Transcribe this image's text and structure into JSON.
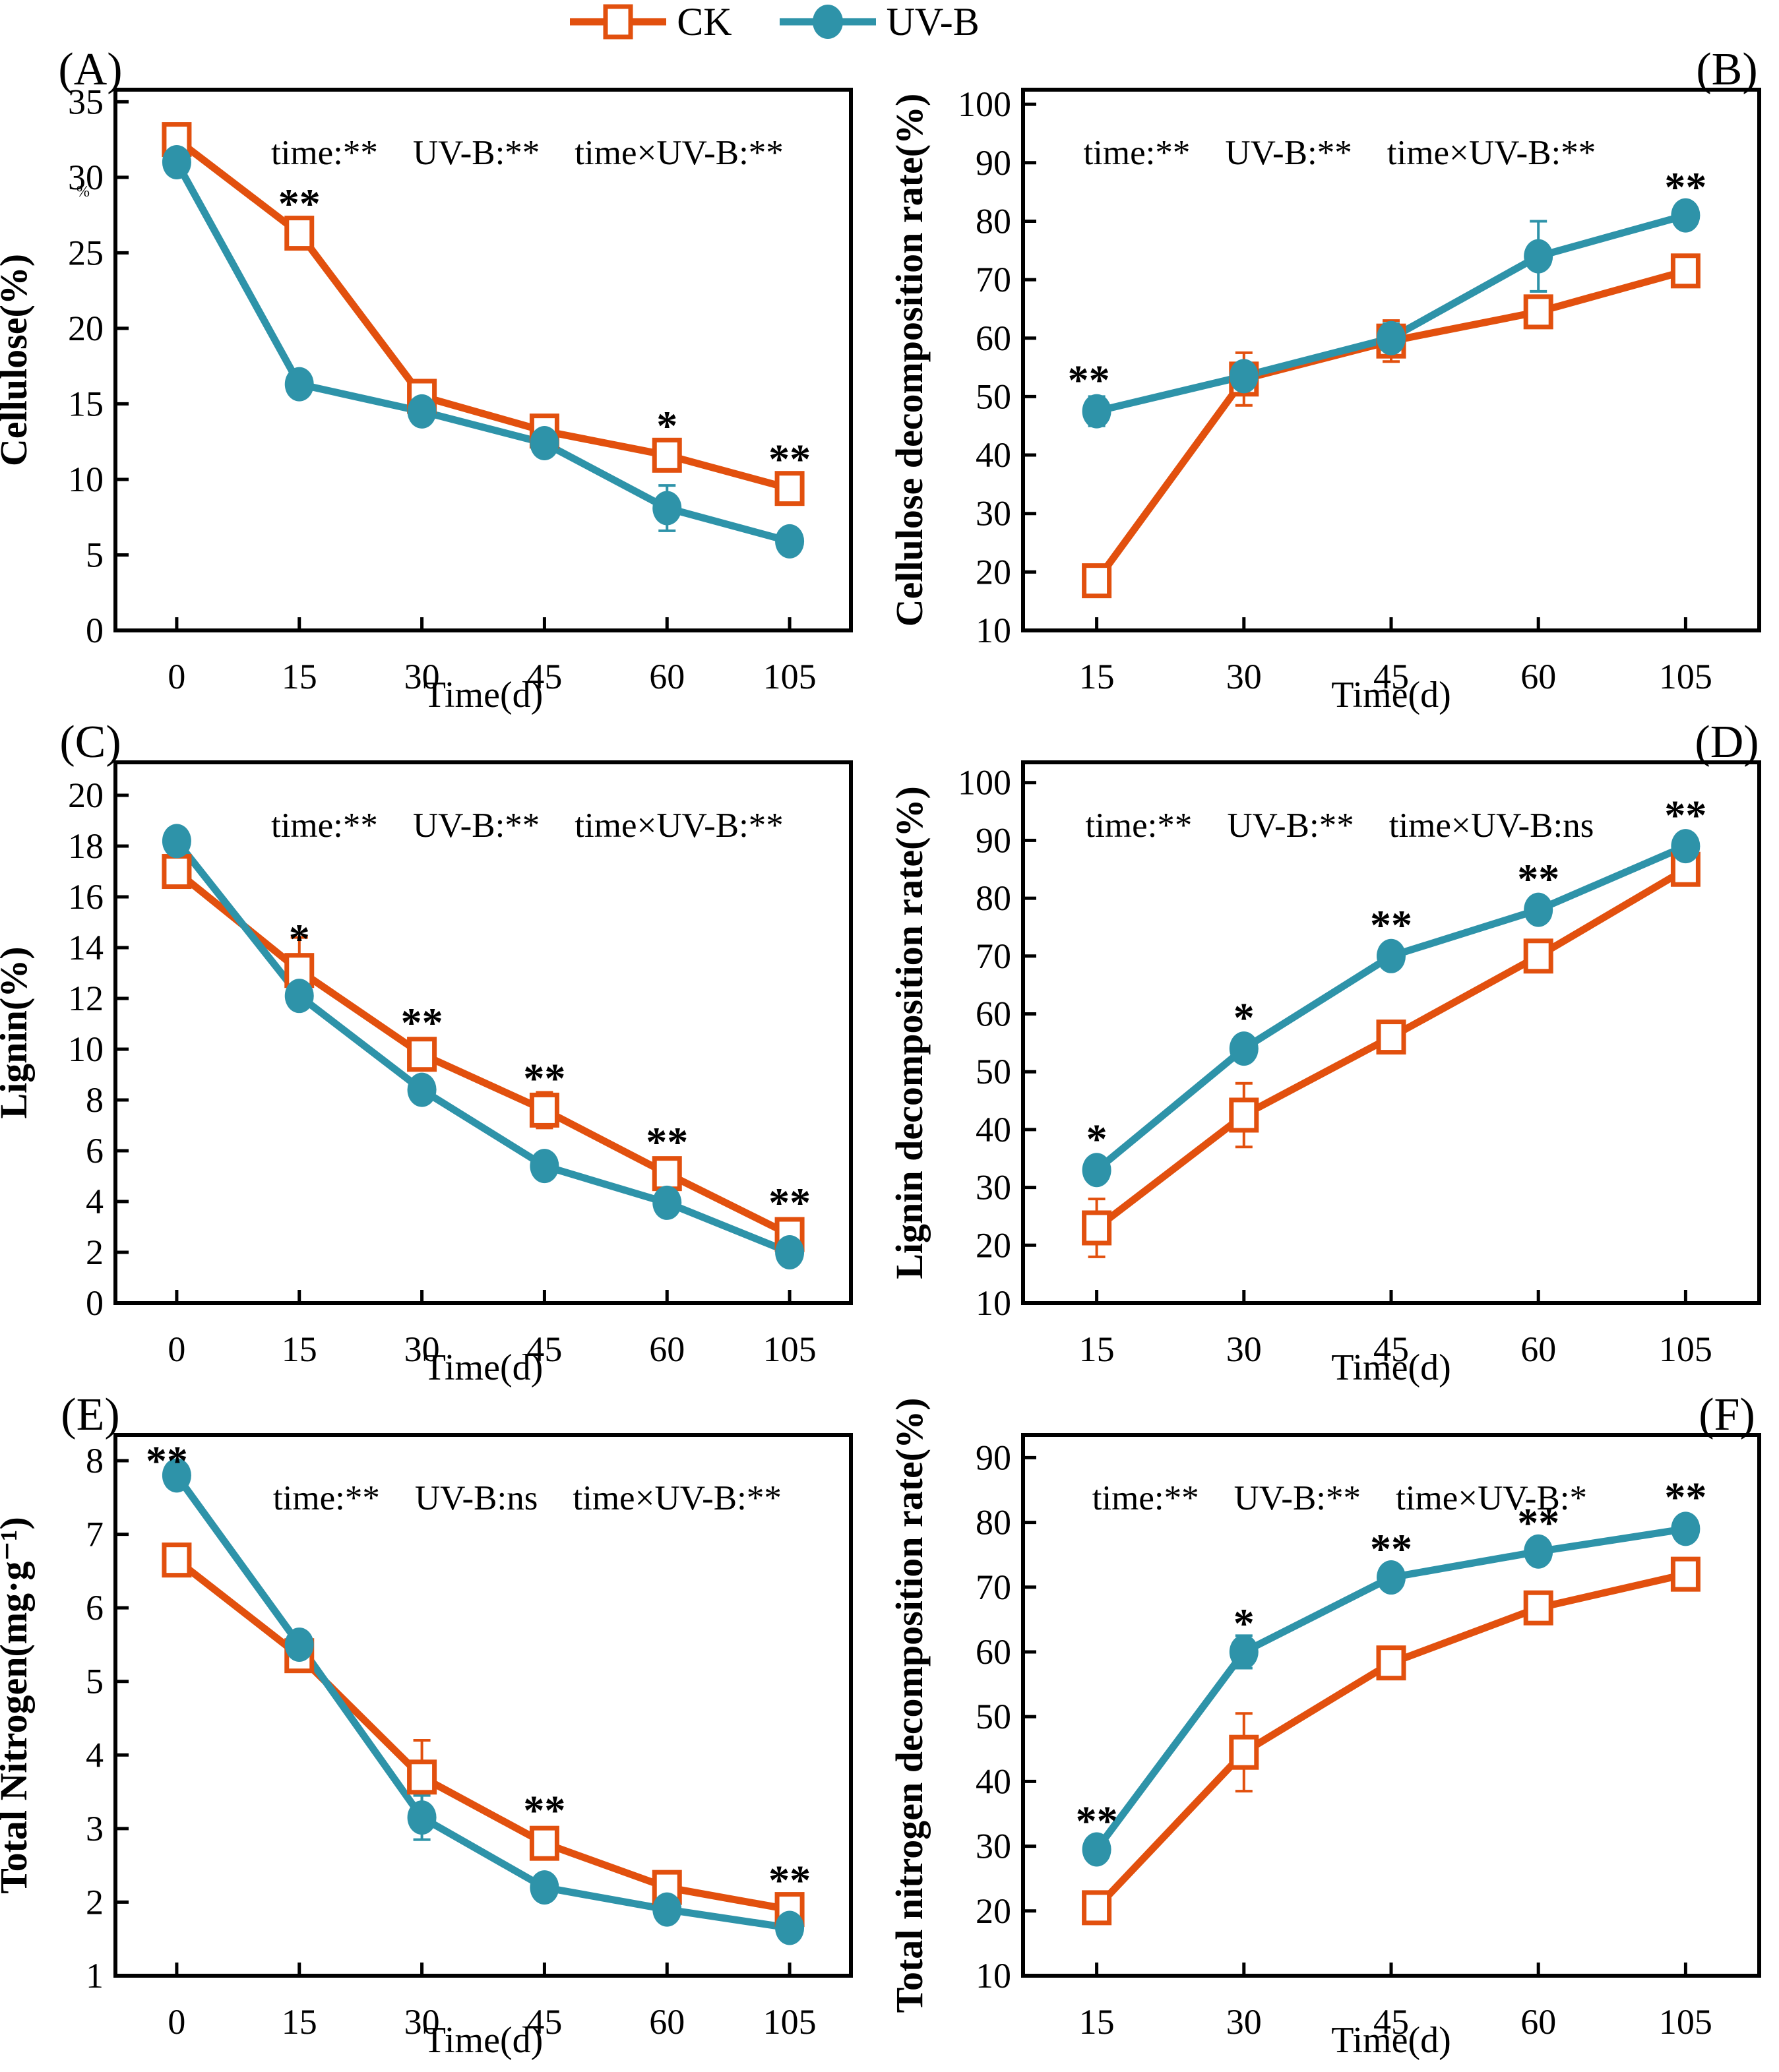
{
  "figure": {
    "stray_glyph": "%",
    "colors": {
      "ck": "#E2500E",
      "uvb": "#2E93A9",
      "axis": "#000000"
    },
    "legend": {
      "items": [
        {
          "label": "CK",
          "series": "CK",
          "marker": "open-square"
        },
        {
          "label": "UV-B",
          "series": "UV-B",
          "marker": "filled-circle"
        }
      ]
    }
  },
  "chart_data": [
    {
      "type": "line",
      "letter": "(A)",
      "col": "left",
      "row": 0,
      "title": "",
      "ylabel": "Cellulose(%)",
      "xlabel": "Time(d)",
      "stats": "time:**  UV-B:**  time×UV-B:**",
      "categories": [
        "0",
        "15",
        "30",
        "45",
        "60",
        "105"
      ],
      "ylim": [
        0,
        35.8
      ],
      "yticks": [
        0,
        5,
        10,
        15,
        20,
        25,
        30,
        35
      ],
      "series": [
        {
          "name": "CK",
          "values": [
            32.5,
            26.3,
            15.5,
            13.2,
            11.6,
            9.4
          ],
          "errors": [
            0.3,
            0.4,
            0.3,
            0.3,
            0.5,
            0.9
          ]
        },
        {
          "name": "UV-B",
          "values": [
            31.0,
            16.3,
            14.5,
            12.4,
            8.1,
            5.9
          ],
          "errors": [
            0.3,
            0.3,
            0.3,
            0.3,
            1.5,
            0.4
          ]
        }
      ],
      "significance": [
        {
          "x": 1,
          "y": 28.5,
          "text": "**"
        },
        {
          "x": 4,
          "y": 13.8,
          "text": "*"
        },
        {
          "x": 5,
          "y": 11.6,
          "text": "**"
        }
      ]
    },
    {
      "type": "line",
      "letter": "(B)",
      "col": "right",
      "row": 0,
      "title": "",
      "ylabel": "Cellulose decomposition rate(%)",
      "xlabel": "Time(d)",
      "stats": "time:**  UV-B:**  time×UV-B:**",
      "categories": [
        "15",
        "30",
        "45",
        "60",
        "105"
      ],
      "ylim": [
        10,
        102.5
      ],
      "yticks": [
        10,
        20,
        30,
        40,
        50,
        60,
        70,
        80,
        90,
        100
      ],
      "series": [
        {
          "name": "CK",
          "values": [
            18.5,
            53.0,
            59.5,
            64.5,
            71.5
          ],
          "errors": [
            2.5,
            4.5,
            3.5,
            1.5,
            1.5
          ]
        },
        {
          "name": "UV-B",
          "values": [
            47.5,
            53.5,
            60.0,
            74.0,
            81.0
          ],
          "errors": [
            2.5,
            1.5,
            2.5,
            6.0,
            1.5
          ]
        }
      ],
      "significance": [
        {
          "x": 0,
          "y": 53.5,
          "text": "**",
          "dx": -12
        },
        {
          "x": 4,
          "y": 86.5,
          "text": "**"
        }
      ]
    },
    {
      "type": "line",
      "letter": "(C)",
      "col": "left",
      "row": 1,
      "title": "",
      "ylabel": "Lignin(%)",
      "xlabel": "Time(d)",
      "stats": "time:**  UV-B:**  time×UV-B:**",
      "categories": [
        "0",
        "15",
        "30",
        "45",
        "60",
        "105"
      ],
      "ylim": [
        0,
        21.3
      ],
      "yticks": [
        0,
        2,
        4,
        6,
        8,
        10,
        12,
        14,
        16,
        18,
        20
      ],
      "series": [
        {
          "name": "CK",
          "values": [
            17.0,
            13.1,
            9.8,
            7.6,
            5.1,
            2.7
          ],
          "errors": [
            0.6,
            1.3,
            0.5,
            0.7,
            0.4,
            0.35
          ]
        },
        {
          "name": "UV-B",
          "values": [
            18.2,
            12.1,
            8.4,
            5.4,
            3.95,
            2.0
          ],
          "errors": [
            0.5,
            0.4,
            0.3,
            0.25,
            0.2,
            0.2
          ]
        }
      ],
      "significance": [
        {
          "x": 1,
          "y": 14.5,
          "text": "*"
        },
        {
          "x": 2,
          "y": 11.2,
          "text": "**"
        },
        {
          "x": 3,
          "y": 9.0,
          "text": "**"
        },
        {
          "x": 4,
          "y": 6.5,
          "text": "**"
        },
        {
          "x": 5,
          "y": 4.1,
          "text": "**"
        }
      ]
    },
    {
      "type": "line",
      "letter": "(D)",
      "col": "right",
      "row": 1,
      "title": "",
      "ylabel": "Lignin decomposition rate(%)",
      "xlabel": "Time(d)",
      "stats": "time:**  UV-B:**  time×UV-B:ns",
      "categories": [
        "15",
        "30",
        "45",
        "60",
        "105"
      ],
      "ylim": [
        10,
        103.5
      ],
      "yticks": [
        10,
        20,
        30,
        40,
        50,
        60,
        70,
        80,
        90,
        100
      ],
      "series": [
        {
          "name": "CK",
          "values": [
            23.0,
            42.5,
            56.0,
            70.0,
            85.0
          ],
          "errors": [
            5.0,
            5.5,
            2.0,
            1.5,
            1.8
          ]
        },
        {
          "name": "UV-B",
          "values": [
            33.0,
            54.0,
            70.0,
            78.0,
            89.0
          ],
          "errors": [
            2.0,
            1.5,
            1.5,
            1.5,
            1.5
          ]
        }
      ],
      "significance": [
        {
          "x": 0,
          "y": 39.0,
          "text": "*"
        },
        {
          "x": 1,
          "y": 60.0,
          "text": "*"
        },
        {
          "x": 2,
          "y": 76.0,
          "text": "**"
        },
        {
          "x": 3,
          "y": 84.0,
          "text": "**"
        },
        {
          "x": 4,
          "y": 95.0,
          "text": "**"
        }
      ]
    },
    {
      "type": "line",
      "letter": "(E)",
      "col": "left",
      "row": 2,
      "title": "",
      "ylabel": "Total Nitrogen(mg·g⁻¹)",
      "xlabel": "Time(d)",
      "stats": "time:**  UV-B:ns  time×UV-B:**",
      "categories": [
        "0",
        "15",
        "30",
        "45",
        "60",
        "105"
      ],
      "ylim": [
        1,
        8.35
      ],
      "yticks": [
        1,
        2,
        3,
        4,
        5,
        6,
        7,
        8
      ],
      "series": [
        {
          "name": "CK",
          "values": [
            6.65,
            5.35,
            3.7,
            2.8,
            2.2,
            1.9
          ],
          "errors": [
            0.15,
            0.1,
            0.5,
            0.12,
            0.15,
            0.12
          ]
        },
        {
          "name": "UV-B",
          "values": [
            7.8,
            5.5,
            3.15,
            2.2,
            1.9,
            1.65
          ],
          "errors": [
            0.1,
            0.08,
            0.3,
            0.07,
            0.07,
            0.1
          ]
        }
      ],
      "significance": [
        {
          "x": 0,
          "y": 8.05,
          "text": "**",
          "dx": -15
        },
        {
          "x": 3,
          "y": 3.3,
          "text": "**"
        },
        {
          "x": 5,
          "y": 2.35,
          "text": "**"
        }
      ]
    },
    {
      "type": "line",
      "letter": "(F)",
      "col": "right",
      "row": 2,
      "title": "",
      "ylabel": "Total nitrogen decomposition rate(%)",
      "xlabel": "Time(d)",
      "stats": "time:**  UV-B:**  time×UV-B:*",
      "categories": [
        "15",
        "30",
        "45",
        "60",
        "105"
      ],
      "ylim": [
        10,
        93.5
      ],
      "yticks": [
        10,
        20,
        30,
        40,
        50,
        60,
        70,
        80,
        90
      ],
      "series": [
        {
          "name": "CK",
          "values": [
            20.5,
            44.5,
            58.3,
            66.8,
            72.0
          ],
          "errors": [
            1.5,
            6.0,
            1.5,
            2.0,
            1.5
          ]
        },
        {
          "name": "UV-B",
          "values": [
            29.5,
            60.0,
            71.5,
            75.5,
            79.0
          ],
          "errors": [
            0.8,
            2.5,
            0.8,
            0.8,
            0.8
          ]
        }
      ],
      "significance": [
        {
          "x": 0,
          "y": 34.5,
          "text": "**"
        },
        {
          "x": 1,
          "y": 65.0,
          "text": "*"
        },
        {
          "x": 2,
          "y": 76.5,
          "text": "**"
        },
        {
          "x": 3,
          "y": 80.5,
          "text": "**"
        },
        {
          "x": 4,
          "y": 84.5,
          "text": "**"
        }
      ]
    }
  ]
}
